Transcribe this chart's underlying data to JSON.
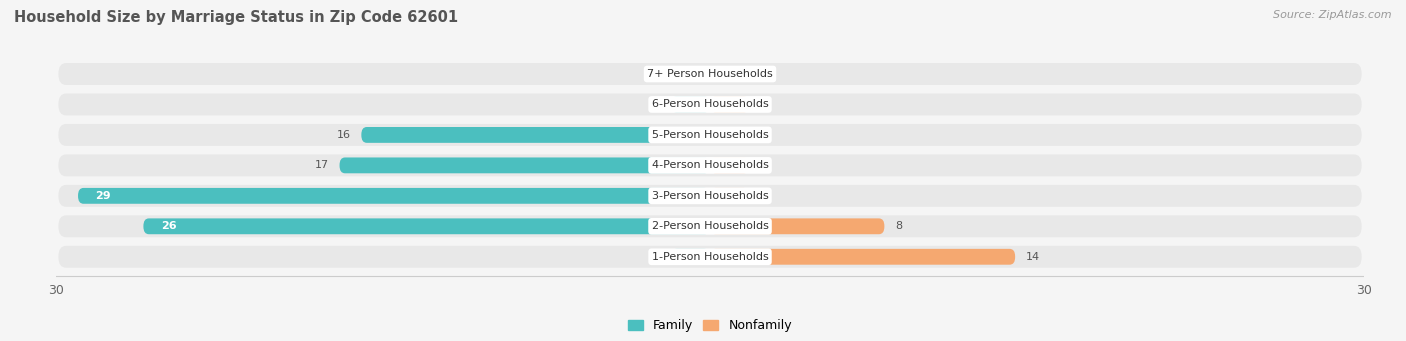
{
  "title": "Household Size by Marriage Status in Zip Code 62601",
  "source": "Source: ZipAtlas.com",
  "categories": [
    "7+ Person Households",
    "6-Person Households",
    "5-Person Households",
    "4-Person Households",
    "3-Person Households",
    "2-Person Households",
    "1-Person Households"
  ],
  "family_values": [
    0,
    0,
    16,
    17,
    29,
    26,
    0
  ],
  "nonfamily_values": [
    0,
    0,
    0,
    0,
    0,
    8,
    14
  ],
  "family_color": "#4BBFBF",
  "nonfamily_color": "#F5A870",
  "xlim_max": 30,
  "background_color": "#f5f5f5",
  "row_bg_color": "#e8e8e8",
  "title_fontsize": 10.5,
  "source_fontsize": 8,
  "label_fontsize": 8,
  "cat_fontsize": 8
}
